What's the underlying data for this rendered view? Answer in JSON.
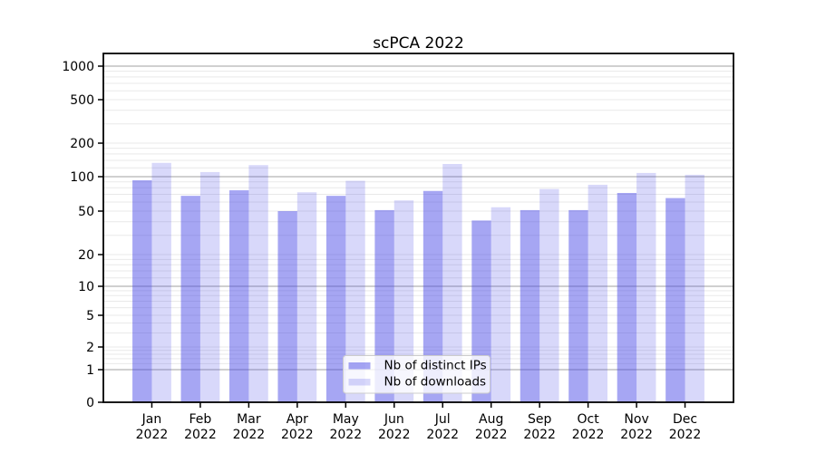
{
  "figure": {
    "title": "scPCA 2022"
  },
  "legend": {
    "items": [
      {
        "label": "Nb of distinct IPs"
      },
      {
        "label": "Nb of downloads"
      }
    ]
  },
  "colors": {
    "series1": "rgba(70,70,230,0.48)",
    "series2": "rgba(70,70,230,0.21)",
    "grid_major": "#b3b3b3",
    "grid_minor": "#e9e9e9",
    "axis": "#000000",
    "legend_border": "#cccccc",
    "legend_bg": "rgba(255,255,255,0.8)",
    "background": "#ffffff"
  },
  "chart_data": {
    "type": "bar",
    "title": "scPCA 2022",
    "categories": [
      "Jan 2022",
      "Feb 2022",
      "Mar 2022",
      "Apr 2022",
      "May 2022",
      "Jun 2022",
      "Jul 2022",
      "Aug 2022",
      "Sep 2022",
      "Oct 2022",
      "Nov 2022",
      "Dec 2022"
    ],
    "series": [
      {
        "name": "Nb of distinct IPs",
        "values": [
          93,
          68,
          76,
          50,
          68,
          51,
          75,
          41,
          51,
          51,
          72,
          65
        ]
      },
      {
        "name": "Nb of downloads",
        "values": [
          133,
          110,
          127,
          73,
          92,
          62,
          130,
          54,
          78,
          85,
          108,
          104
        ]
      }
    ],
    "xlabel": "",
    "ylabel": "",
    "yscale": "symlog",
    "yticks": [
      0,
      1,
      2,
      5,
      10,
      20,
      50,
      100,
      200,
      500,
      1000
    ],
    "ylim": [
      0,
      1300
    ],
    "grid": true,
    "legend_position": "lower center"
  }
}
